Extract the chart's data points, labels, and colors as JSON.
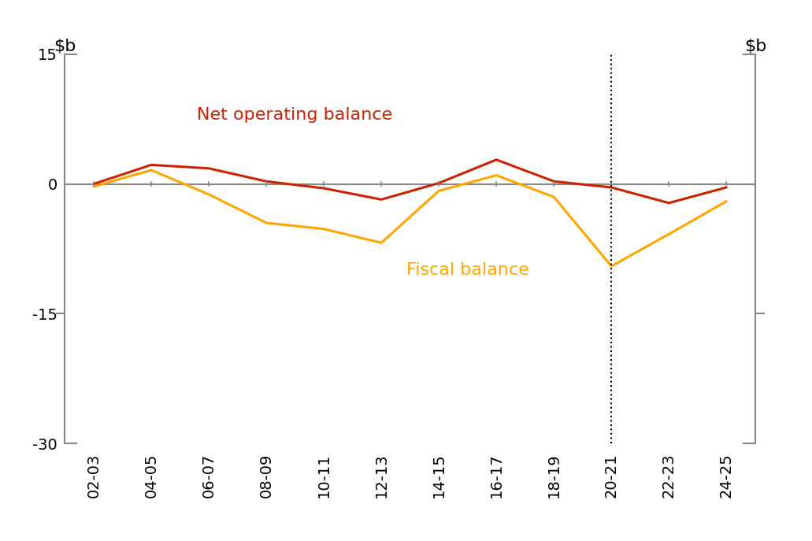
{
  "x_labels": [
    "02-03",
    "04-05",
    "06-07",
    "08-09",
    "10-11",
    "12-13",
    "14-15",
    "16-17",
    "18-19",
    "20-21",
    "22-23",
    "24-25"
  ],
  "x_indices": [
    0,
    1,
    2,
    3,
    4,
    5,
    6,
    7,
    8,
    9,
    10,
    11
  ],
  "net_operating_balance": [
    0.0,
    2.2,
    1.8,
    0.3,
    -0.5,
    -1.8,
    0.1,
    2.8,
    0.3,
    -0.4,
    -2.2,
    -0.4
  ],
  "fiscal_balance": [
    -0.3,
    1.6,
    -1.2,
    -4.5,
    -5.2,
    -6.8,
    -0.8,
    1.0,
    -1.5,
    -9.5,
    -5.8,
    -2.0
  ],
  "dotted_line_x": 9,
  "ylim": [
    -30,
    15
  ],
  "yticks": [
    -30,
    -15,
    0,
    15
  ],
  "net_operating_color": "#CC2200",
  "fiscal_color": "#FFA500",
  "axis_color": "#888888",
  "zero_line_color": "#888888",
  "label_net_operating": "Net operating balance",
  "label_fiscal": "Fiscal balance",
  "background_color": "#ffffff",
  "line_width": 2.2,
  "label_fontsize": 16,
  "tick_fontsize": 14,
  "yb_fontsize": 16
}
